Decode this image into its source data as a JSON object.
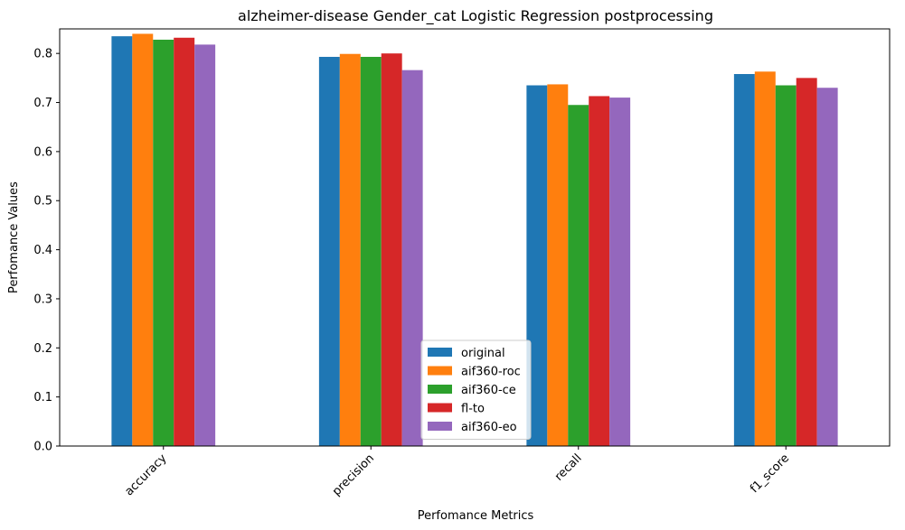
{
  "chart_data": {
    "type": "bar",
    "title": "alzheimer-disease Gender_cat Logistic Regression postprocessing",
    "xlabel": "Perfomance Metrics",
    "ylabel": "Perfomance Values",
    "categories": [
      "accuracy",
      "precision",
      "recall",
      "f1_score"
    ],
    "ylim": [
      0,
      0.85
    ],
    "yticks": [
      "0.0",
      "0.1",
      "0.2",
      "0.3",
      "0.4",
      "0.5",
      "0.6",
      "0.7",
      "0.8"
    ],
    "legend_position": "bottom-center",
    "grid": false,
    "series": [
      {
        "name": "original",
        "color": "#1f77b4",
        "values": [
          0.835,
          0.793,
          0.735,
          0.758
        ]
      },
      {
        "name": "aif360-roc",
        "color": "#ff7f0e",
        "values": [
          0.84,
          0.799,
          0.737,
          0.763
        ]
      },
      {
        "name": "aif360-ce",
        "color": "#2ca02c",
        "values": [
          0.828,
          0.793,
          0.695,
          0.735
        ]
      },
      {
        "name": "fl-to",
        "color": "#d62728",
        "values": [
          0.832,
          0.8,
          0.713,
          0.75
        ]
      },
      {
        "name": "aif360-eo",
        "color": "#9467bd",
        "values": [
          0.818,
          0.766,
          0.71,
          0.73
        ]
      }
    ]
  }
}
